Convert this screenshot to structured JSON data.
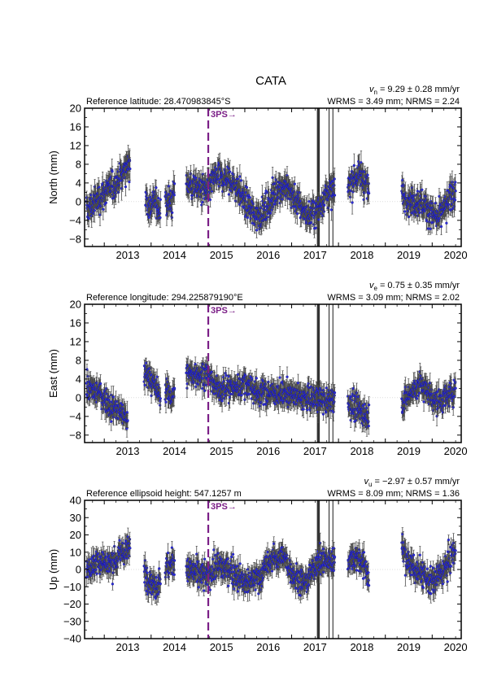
{
  "title": "CATA",
  "x_ticks": [
    "2013",
    "2014",
    "2015",
    "2016",
    "2017",
    "2018",
    "2019",
    "2020"
  ],
  "x_tick_values": [
    2013,
    2014,
    2015,
    2016,
    2017,
    2018,
    2019,
    2020
  ],
  "xlim": [
    2012.58,
    2020.62
  ],
  "event": {
    "label": "3PS",
    "arrow": "→",
    "year": 2015.22,
    "color": "#7b1f87"
  },
  "equipment_changes": [
    {
      "year": 2017.57,
      "style": "thick"
    },
    {
      "year": 2017.8,
      "style": "thin"
    },
    {
      "year": 2017.88,
      "style": "thin"
    }
  ],
  "colors": {
    "point": "#2b2bd6",
    "errorbar": "#4a4a4a",
    "axis": "#000000"
  },
  "chart_data": [
    {
      "type": "scatter",
      "ylabel": "North (mm)",
      "ylim": [
        -9.6,
        20
      ],
      "yticks": [
        -8,
        -4,
        0,
        4,
        8,
        12,
        16,
        20
      ],
      "ytick_labels": [
        "−8",
        "−4",
        "0",
        "4",
        "8",
        "12",
        "16",
        "20"
      ],
      "reference_label": "Reference latitude: 28.470983845°S",
      "velocity_symbol": "v",
      "velocity_sub": "n",
      "velocity_text": " = 9.29 ± 0.28 mm/yr",
      "stats_text": "WRMS = 3.49 mm; NRMS = 2.24",
      "segments": [
        {
          "x": [
            2012.62,
            2012.9,
            2013.15,
            2013.4,
            2013.55
          ],
          "y": [
            -2,
            1,
            3,
            6,
            9
          ]
        },
        {
          "x": [
            2013.88,
            2013.95,
            2014.1,
            2014.2
          ],
          "y": [
            1,
            -1,
            0,
            -2
          ]
        },
        {
          "x": [
            2014.3,
            2014.45,
            2014.5
          ],
          "y": [
            0,
            0,
            3
          ]
        },
        {
          "x": [
            2014.75,
            2015.0,
            2015.2,
            2015.35,
            2015.6,
            2015.85,
            2016.0,
            2016.2,
            2016.45,
            2016.7,
            2016.9,
            2017.1,
            2017.35,
            2017.55,
            2017.75,
            2017.92
          ],
          "y": [
            4,
            3,
            2,
            5,
            5,
            3,
            0,
            -3,
            -2,
            3,
            3,
            0,
            -3,
            -2,
            2,
            2
          ]
        },
        {
          "x": [
            2018.2,
            2018.35,
            2018.5,
            2018.65
          ],
          "y": [
            3,
            5,
            6,
            2
          ]
        },
        {
          "x": [
            2019.35,
            2019.55,
            2019.75,
            2019.95,
            2020.1,
            2020.3,
            2020.5
          ],
          "y": [
            2,
            0,
            0,
            -2,
            -4,
            -1,
            3
          ]
        }
      ],
      "noise": 2.6,
      "sigma": 1.6
    },
    {
      "type": "scatter",
      "ylabel": "East (mm)",
      "ylim": [
        -9.6,
        20
      ],
      "yticks": [
        -8,
        -4,
        0,
        4,
        8,
        12,
        16,
        20
      ],
      "ytick_labels": [
        "−8",
        "−4",
        "0",
        "4",
        "8",
        "12",
        "16",
        "20"
      ],
      "reference_label": "Reference longitude: 294.225879190°E",
      "velocity_symbol": "v",
      "velocity_sub": "e",
      "velocity_text": " = 0.75 ± 0.35 mm/yr",
      "stats_text": "WRMS = 3.09 mm; NRMS = 2.02",
      "segments": [
        {
          "x": [
            2012.62,
            2012.9,
            2013.15,
            2013.35,
            2013.5
          ],
          "y": [
            2,
            1,
            -2,
            -3,
            -5
          ]
        },
        {
          "x": [
            2013.85,
            2013.95,
            2014.1,
            2014.2
          ],
          "y": [
            5,
            5,
            2,
            0
          ]
        },
        {
          "x": [
            2014.3,
            2014.45,
            2014.5
          ],
          "y": [
            2,
            0,
            2
          ]
        },
        {
          "x": [
            2014.75,
            2015.0,
            2015.2,
            2015.4,
            2015.7,
            2016.0,
            2016.3,
            2016.6,
            2016.9,
            2017.2,
            2017.5,
            2017.75,
            2017.92
          ],
          "y": [
            5,
            5,
            5,
            2,
            2,
            3,
            1,
            1,
            1,
            0,
            0,
            -1,
            0
          ]
        },
        {
          "x": [
            2018.2,
            2018.35,
            2018.5,
            2018.65
          ],
          "y": [
            -1,
            -2,
            -3,
            -4
          ]
        },
        {
          "x": [
            2019.35,
            2019.55,
            2019.75,
            2019.95,
            2020.1,
            2020.3,
            2020.5
          ],
          "y": [
            -1,
            1,
            3,
            1,
            -1,
            0,
            2
          ]
        }
      ],
      "noise": 2.2,
      "sigma": 1.5
    },
    {
      "type": "scatter",
      "ylabel": "Up (mm)",
      "ylim": [
        -40,
        40
      ],
      "yticks": [
        -40,
        -30,
        -20,
        -10,
        0,
        10,
        20,
        30,
        40
      ],
      "ytick_labels": [
        "−40",
        "−30",
        "−20",
        "−10",
        "0",
        "10",
        "20",
        "30",
        "40"
      ],
      "reference_label": "Reference ellipsoid height: 547.1257 m",
      "velocity_symbol": "v",
      "velocity_sub": "u",
      "velocity_text": " = −2.97 ± 0.57 mm/yr",
      "stats_text": "WRMS = 8.09 mm; NRMS = 1.36",
      "segments": [
        {
          "x": [
            2012.62,
            2012.9,
            2013.15,
            2013.4,
            2013.55
          ],
          "y": [
            0,
            5,
            3,
            10,
            12
          ]
        },
        {
          "x": [
            2013.85,
            2013.95,
            2014.1,
            2014.2
          ],
          "y": [
            0,
            -5,
            -10,
            -5
          ]
        },
        {
          "x": [
            2014.3,
            2014.45,
            2014.5
          ],
          "y": [
            0,
            3,
            6
          ]
        },
        {
          "x": [
            2014.75,
            2015.0,
            2015.2,
            2015.4,
            2015.7,
            2016.0,
            2016.3,
            2016.55,
            2016.8,
            2017.1,
            2017.3,
            2017.55,
            2017.75,
            2017.92
          ],
          "y": [
            0,
            -2,
            -5,
            2,
            0,
            -8,
            -5,
            5,
            8,
            -5,
            -8,
            5,
            5,
            5
          ]
        },
        {
          "x": [
            2018.2,
            2018.35,
            2018.5,
            2018.65
          ],
          "y": [
            5,
            8,
            5,
            -5
          ]
        },
        {
          "x": [
            2019.35,
            2019.55,
            2019.75,
            2019.95,
            2020.1,
            2020.3,
            2020.5
          ],
          "y": [
            12,
            2,
            -2,
            -8,
            -5,
            2,
            10
          ]
        }
      ],
      "noise": 6.5,
      "sigma": 4.0
    }
  ]
}
